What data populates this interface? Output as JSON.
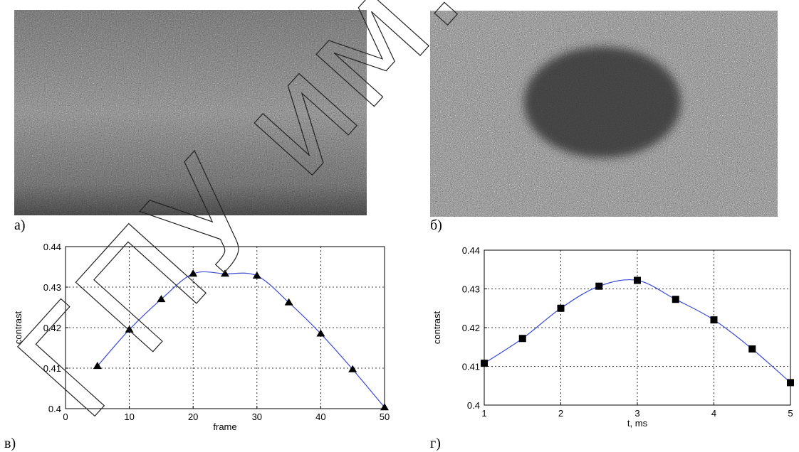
{
  "panels": [
    {
      "label": "а)",
      "kind": "speckle-photo",
      "has_dark_spot": false
    },
    {
      "label": "б)",
      "kind": "speckle-photo",
      "has_dark_spot": true
    },
    {
      "label": "в)",
      "kind": "chart"
    },
    {
      "label": "г)",
      "kind": "chart"
    }
  ],
  "watermark": {
    "text": "ГПУ им. И.П.Ша"
  },
  "chart_data": [
    {
      "type": "line",
      "title": "",
      "xlabel": "frame",
      "ylabel": "contrast",
      "xlim": [
        0,
        50
      ],
      "ylim": [
        0.4,
        0.44
      ],
      "xticks": [
        0,
        10,
        20,
        30,
        40,
        50
      ],
      "yticks": [
        0.4,
        0.41,
        0.42,
        0.43,
        0.44
      ],
      "xtick_labels": [
        "0",
        "10",
        "20",
        "30",
        "40",
        "50"
      ],
      "ytick_labels": [
        "0.4",
        "0.41",
        "0.42",
        "0.43",
        "0.44"
      ],
      "grid": true,
      "marker": "triangle",
      "line_color": "#3a4bd6",
      "x": [
        5,
        10,
        15,
        20,
        25,
        30,
        35,
        40,
        45,
        50
      ],
      "y": [
        0.4105,
        0.4195,
        0.427,
        0.4333,
        0.4333,
        0.4328,
        0.4262,
        0.4185,
        0.4097,
        0.4003
      ]
    },
    {
      "type": "line",
      "title": "",
      "xlabel": "t, ms",
      "ylabel": "contrast",
      "xlim": [
        1,
        5
      ],
      "ylim": [
        0.4,
        0.44
      ],
      "xticks": [
        1,
        2,
        3,
        4,
        5
      ],
      "yticks": [
        0.4,
        0.41,
        0.42,
        0.43,
        0.44
      ],
      "xtick_labels": [
        "1",
        "2",
        "3",
        "4",
        "5"
      ],
      "ytick_labels": [
        "0.4",
        "0.41",
        "0.42",
        "0.43",
        "0.44"
      ],
      "grid": true,
      "marker": "square",
      "line_color": "#3a4bd6",
      "x": [
        1,
        1.5,
        2,
        2.5,
        3,
        3.5,
        4,
        4.5,
        5
      ],
      "y": [
        0.4108,
        0.4172,
        0.425,
        0.4307,
        0.4322,
        0.4273,
        0.422,
        0.4145,
        0.4058
      ]
    }
  ]
}
